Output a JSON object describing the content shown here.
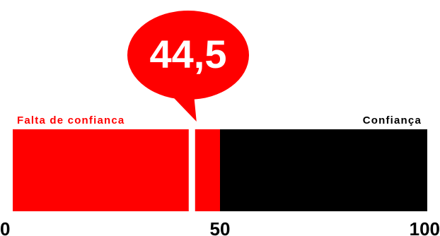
{
  "chart_data": {
    "type": "bar",
    "value": 44.5,
    "value_label": "44,5",
    "scale_min": 0,
    "scale_max": 100,
    "midpoint": 50,
    "tick_labels": [
      "0",
      "50",
      "100"
    ],
    "left_zone_label": "Falta de confianca",
    "right_zone_label": "Confiança",
    "colors": {
      "low_zone": "#ff0000",
      "high_zone": "#000000",
      "value_marker": "#ffffff",
      "callout": "#ff0000",
      "callout_text": "#ffffff",
      "left_label": "#ff0000",
      "right_label": "#000000",
      "ticks": "#000000"
    }
  }
}
